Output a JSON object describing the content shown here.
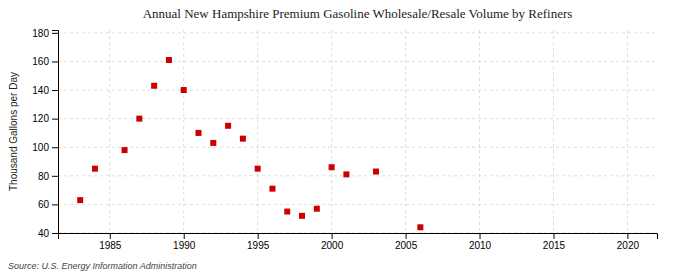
{
  "chart_data": {
    "type": "scatter",
    "title": "Annual New Hampshire Premium Gasoline Wholesale/Resale Volume by Refiners",
    "ylabel": "Thousand Gallons per Day",
    "source": "Source: U.S. Energy Information Administration",
    "x": [
      1983,
      1984,
      1986,
      1987,
      1988,
      1989,
      1990,
      1991,
      1992,
      1993,
      1994,
      1995,
      1996,
      1997,
      1998,
      1999,
      2000,
      2001,
      2003,
      2006
    ],
    "values": [
      63,
      85,
      98,
      120,
      143,
      161,
      140,
      110,
      103,
      115,
      106,
      85,
      71,
      55,
      52,
      57,
      86,
      81,
      83,
      44
    ],
    "color": "#cc0000",
    "marker": "square",
    "xlim": [
      1981.5,
      2022
    ],
    "ylim": [
      40,
      182
    ],
    "xticks": [
      1985,
      1990,
      1995,
      2000,
      2005,
      2010,
      2015,
      2020
    ],
    "yticks": [
      40,
      60,
      80,
      100,
      120,
      140,
      160,
      180
    ],
    "grid": true
  }
}
